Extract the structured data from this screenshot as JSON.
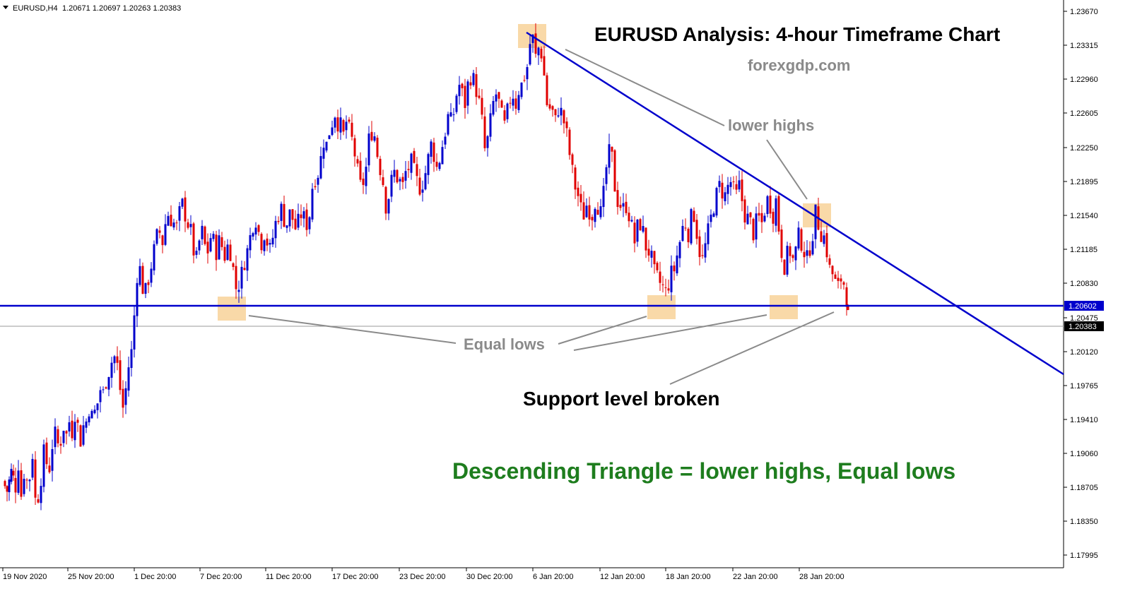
{
  "header": {
    "symbol_label": "EURUSD,H4",
    "ohlc": "1.20671 1.20697 1.20263 1.20383"
  },
  "annotations": {
    "title": "EURUSD Analysis: 4-hour Timeframe Chart",
    "source": "forexgdp.com",
    "lower_highs": "lower highs",
    "equal_lows": "Equal lows",
    "support_broken": "Support level broken",
    "conclusion": "Descending Triangle = lower highs, Equal lows"
  },
  "colors": {
    "bull": "#0000cc",
    "bear": "#e00000",
    "trendline": "#0000cc",
    "highlight": "#f9d9a8",
    "annotation_gray": "#8a8a8a",
    "conclusion_green": "#1e7d1e",
    "axis": "#000000"
  },
  "chart_data": {
    "type": "candlestick",
    "symbol": "EURUSD",
    "timeframe": "H4",
    "ylim": [
      1.178,
      1.237
    ],
    "y_ticks": [
      "1.23670",
      "1.23315",
      "1.22960",
      "1.22605",
      "1.22250",
      "1.21895",
      "1.21540",
      "1.21185",
      "1.20830",
      "1.20475",
      "1.20120",
      "1.19765",
      "1.19410",
      "1.19060",
      "1.18705",
      "1.18350",
      "1.17995"
    ],
    "x_ticks": [
      "19 Nov 2020",
      "25 Nov 20:00",
      "1 Dec 20:00",
      "7 Dec 20:00",
      "11 Dec 20:00",
      "17 Dec 20:00",
      "23 Dec 20:00",
      "30 Dec 20:00",
      "6 Jan 20:00",
      "12 Jan 20:00",
      "18 Jan 20:00",
      "22 Jan 20:00",
      "28 Jan 20:00"
    ],
    "support_level": "1.20602",
    "current_price": "1.20383",
    "closing_prices_by_date": [
      {
        "date": "19 Nov 2020",
        "close": 1.186
      },
      {
        "date": "25 Nov 20:00",
        "close": 1.192
      },
      {
        "date": "1 Dec 20:00",
        "close": 1.2085
      },
      {
        "date": "7 Dec 20:00",
        "close": 1.208
      },
      {
        "date": "11 Dec 20:00",
        "close": 1.213
      },
      {
        "date": "17 Dec 20:00",
        "close": 1.225
      },
      {
        "date": "23 Dec 20:00",
        "close": 1.219
      },
      {
        "date": "30 Dec 20:00",
        "close": 1.229
      },
      {
        "date": "6 Jan 20:00",
        "close": 1.229
      },
      {
        "date": "12 Jan 20:00",
        "close": 1.214
      },
      {
        "date": "18 Jan 20:00",
        "close": 1.208
      },
      {
        "date": "22 Jan 20:00",
        "close": 1.216
      },
      {
        "date": "28 Jan 20:00",
        "close": 1.212
      }
    ],
    "highs_marked": [
      {
        "label": "peak",
        "price": 1.2345
      },
      {
        "label": "lower high",
        "price": 1.2155
      }
    ],
    "lows_marked": [
      {
        "label": "equal low",
        "price": 1.206
      },
      {
        "label": "equal low",
        "price": 1.206
      },
      {
        "label": "equal low",
        "price": 1.2062
      }
    ],
    "candle_path": [
      [
        0,
        1.186
      ],
      [
        6,
        1.185
      ],
      [
        12,
        1.187
      ],
      [
        18,
        1.1855
      ],
      [
        22,
        1.188
      ],
      [
        26,
        1.1845
      ],
      [
        30,
        1.187
      ],
      [
        34,
        1.186
      ],
      [
        38,
        1.1865
      ],
      [
        42,
        1.189
      ],
      [
        46,
        1.184
      ],
      [
        50,
        1.1845
      ],
      [
        54,
        1.1865
      ],
      [
        58,
        1.189
      ],
      [
        62,
        1.188
      ],
      [
        66,
        1.1875
      ],
      [
        70,
        1.19
      ],
      [
        74,
        1.191
      ],
      [
        78,
        1.19
      ],
      [
        82,
        1.1905
      ],
      [
        86,
        1.192
      ],
      [
        90,
        1.191
      ],
      [
        94,
        1.1925
      ],
      [
        98,
        1.1915
      ],
      [
        102,
        1.1935
      ],
      [
        106,
        1.192
      ],
      [
        110,
        1.1905
      ],
      [
        114,
        1.192
      ],
      [
        118,
        1.1925
      ],
      [
        122,
        1.194
      ],
      [
        126,
        1.193
      ],
      [
        130,
        1.1935
      ],
      [
        134,
        1.1945
      ],
      [
        138,
        1.196
      ],
      [
        142,
        1.1955
      ],
      [
        146,
        1.197
      ],
      [
        150,
        1.198
      ],
      [
        154,
        1.199
      ],
      [
        158,
        1.1995
      ],
      [
        162,
        1.1985
      ],
      [
        166,
        1.196
      ],
      [
        170,
        1.194
      ],
      [
        174,
        1.196
      ],
      [
        178,
        1.1985
      ],
      [
        182,
        1.2
      ],
      [
        186,
        1.204
      ],
      [
        190,
        1.2085
      ],
      [
        194,
        1.209
      ],
      [
        198,
        1.207
      ],
      [
        202,
        1.2065
      ],
      [
        206,
        1.208
      ],
      [
        210,
        1.2095
      ],
      [
        214,
        1.211
      ],
      [
        218,
        1.2125
      ],
      [
        222,
        1.213
      ],
      [
        226,
        1.212
      ],
      [
        230,
        1.214
      ],
      [
        234,
        1.215
      ],
      [
        238,
        1.2145
      ],
      [
        242,
        1.214
      ],
      [
        246,
        1.2135
      ],
      [
        250,
        1.215
      ],
      [
        254,
        1.216
      ],
      [
        258,
        1.215
      ],
      [
        262,
        1.214
      ],
      [
        266,
        1.213
      ],
      [
        270,
        1.211
      ],
      [
        274,
        1.21
      ],
      [
        278,
        1.212
      ],
      [
        282,
        1.213
      ],
      [
        286,
        1.2115
      ],
      [
        290,
        1.211
      ],
      [
        294,
        1.2125
      ],
      [
        298,
        1.212
      ],
      [
        302,
        1.211
      ],
      [
        306,
        1.212
      ],
      [
        310,
        1.2115
      ],
      [
        314,
        1.2105
      ],
      [
        318,
        1.2115
      ],
      [
        322,
        1.211
      ],
      [
        326,
        1.209
      ],
      [
        330,
        1.207
      ],
      [
        334,
        1.2075
      ],
      [
        338,
        1.2085
      ],
      [
        342,
        1.21
      ],
      [
        346,
        1.211
      ],
      [
        350,
        1.2125
      ],
      [
        354,
        1.214
      ],
      [
        358,
        1.2145
      ],
      [
        362,
        1.213
      ],
      [
        366,
        1.212
      ],
      [
        370,
        1.213
      ],
      [
        374,
        1.212
      ],
      [
        378,
        1.211
      ],
      [
        382,
        1.2125
      ],
      [
        386,
        1.214
      ],
      [
        390,
        1.215
      ],
      [
        394,
        1.2155
      ],
      [
        398,
        1.2145
      ],
      [
        402,
        1.214
      ],
      [
        406,
        1.215
      ],
      [
        410,
        1.2145
      ],
      [
        414,
        1.2135
      ],
      [
        418,
        1.214
      ],
      [
        422,
        1.215
      ],
      [
        426,
        1.2145
      ],
      [
        430,
        1.214
      ],
      [
        434,
        1.215
      ],
      [
        438,
        1.218
      ],
      [
        442,
        1.219
      ],
      [
        446,
        1.2195
      ],
      [
        450,
        1.221
      ],
      [
        454,
        1.223
      ],
      [
        458,
        1.2225
      ],
      [
        462,
        1.224
      ],
      [
        466,
        1.225
      ],
      [
        470,
        1.226
      ],
      [
        474,
        1.225
      ],
      [
        478,
        1.2245
      ],
      [
        482,
        1.2235
      ],
      [
        486,
        1.225
      ],
      [
        490,
        1.224
      ],
      [
        494,
        1.223
      ],
      [
        498,
        1.2215
      ],
      [
        502,
        1.2195
      ],
      [
        506,
        1.218
      ],
      [
        510,
        1.2185
      ],
      [
        514,
        1.22
      ],
      [
        518,
        1.223
      ],
      [
        522,
        1.224
      ],
      [
        526,
        1.2235
      ],
      [
        530,
        1.2215
      ],
      [
        534,
        1.22
      ],
      [
        538,
        1.2185
      ],
      [
        542,
        1.216
      ],
      [
        546,
        1.217
      ],
      [
        550,
        1.2185
      ],
      [
        554,
        1.2195
      ],
      [
        558,
        1.219
      ],
      [
        562,
        1.2185
      ],
      [
        566,
        1.218
      ],
      [
        570,
        1.2195
      ],
      [
        574,
        1.22
      ],
      [
        578,
        1.2205
      ],
      [
        582,
        1.2195
      ],
      [
        586,
        1.2185
      ],
      [
        590,
        1.218
      ],
      [
        594,
        1.2185
      ],
      [
        598,
        1.2195
      ],
      [
        602,
        1.221
      ],
      [
        606,
        1.2225
      ],
      [
        610,
        1.2215
      ],
      [
        614,
        1.22
      ],
      [
        618,
        1.221
      ],
      [
        622,
        1.2225
      ],
      [
        626,
        1.224
      ],
      [
        630,
        1.2255
      ],
      [
        634,
        1.225
      ],
      [
        638,
        1.226
      ],
      [
        642,
        1.228
      ],
      [
        646,
        1.229
      ],
      [
        650,
        1.228
      ],
      [
        654,
        1.227
      ],
      [
        658,
        1.229
      ],
      [
        662,
        1.23
      ],
      [
        666,
        1.2295
      ],
      [
        670,
        1.2285
      ],
      [
        674,
        1.227
      ],
      [
        678,
        1.225
      ],
      [
        682,
        1.222
      ],
      [
        686,
        1.223
      ],
      [
        690,
        1.225
      ],
      [
        694,
        1.227
      ],
      [
        698,
        1.228
      ],
      [
        702,
        1.227
      ],
      [
        706,
        1.2255
      ],
      [
        710,
        1.2245
      ],
      [
        714,
        1.226
      ],
      [
        718,
        1.2275
      ],
      [
        722,
        1.228
      ],
      [
        726,
        1.227
      ],
      [
        730,
        1.2285
      ],
      [
        734,
        1.229
      ],
      [
        738,
        1.23
      ],
      [
        742,
        1.231
      ],
      [
        746,
        1.2335
      ],
      [
        750,
        1.234
      ],
      [
        754,
        1.232
      ],
      [
        758,
        1.233
      ],
      [
        762,
        1.2325
      ],
      [
        766,
        1.23
      ],
      [
        770,
        1.227
      ],
      [
        774,
        1.2265
      ],
      [
        778,
        1.226
      ],
      [
        782,
        1.225
      ],
      [
        786,
        1.2265
      ],
      [
        790,
        1.226
      ],
      [
        794,
        1.225
      ],
      [
        798,
        1.2235
      ],
      [
        802,
        1.2215
      ],
      [
        806,
        1.2195
      ],
      [
        810,
        1.218
      ],
      [
        814,
        1.217
      ],
      [
        818,
        1.2155
      ],
      [
        822,
        1.215
      ],
      [
        826,
        1.216
      ],
      [
        830,
        1.2155
      ],
      [
        834,
        1.215
      ],
      [
        838,
        1.2165
      ],
      [
        842,
        1.216
      ],
      [
        846,
        1.215
      ],
      [
        850,
        1.217
      ],
      [
        854,
        1.22
      ],
      [
        858,
        1.2215
      ],
      [
        862,
        1.221
      ],
      [
        866,
        1.218
      ],
      [
        870,
        1.2165
      ],
      [
        874,
        1.216
      ],
      [
        878,
        1.2155
      ],
      [
        882,
        1.216
      ],
      [
        886,
        1.215
      ],
      [
        890,
        1.2135
      ],
      [
        894,
        1.212
      ],
      [
        898,
        1.2135
      ],
      [
        902,
        1.214
      ],
      [
        906,
        1.213
      ],
      [
        910,
        1.2115
      ],
      [
        914,
        1.211
      ],
      [
        918,
        1.21
      ],
      [
        922,
        1.2085
      ],
      [
        926,
        1.208
      ],
      [
        930,
        1.2075
      ],
      [
        934,
        1.207
      ],
      [
        938,
        1.2065
      ],
      [
        942,
        1.2075
      ],
      [
        946,
        1.2085
      ],
      [
        950,
        1.209
      ],
      [
        954,
        1.2105
      ],
      [
        958,
        1.212
      ],
      [
        962,
        1.2135
      ],
      [
        966,
        1.214
      ],
      [
        970,
        1.213
      ],
      [
        974,
        1.2145
      ],
      [
        978,
        1.215
      ],
      [
        982,
        1.213
      ],
      [
        986,
        1.211
      ],
      [
        990,
        1.21
      ],
      [
        994,
        1.2115
      ],
      [
        998,
        1.213
      ],
      [
        1002,
        1.2145
      ],
      [
        1006,
        1.216
      ],
      [
        1010,
        1.217
      ],
      [
        1014,
        1.218
      ],
      [
        1018,
        1.2175
      ],
      [
        1022,
        1.217
      ],
      [
        1026,
        1.218
      ],
      [
        1030,
        1.2185
      ],
      [
        1034,
        1.2175
      ],
      [
        1038,
        1.217
      ],
      [
        1042,
        1.218
      ],
      [
        1046,
        1.2165
      ],
      [
        1050,
        1.215
      ],
      [
        1054,
        1.2145
      ],
      [
        1058,
        1.214
      ],
      [
        1062,
        1.213
      ],
      [
        1066,
        1.214
      ],
      [
        1070,
        1.2145
      ],
      [
        1074,
        1.214
      ],
      [
        1078,
        1.2155
      ],
      [
        1082,
        1.2165
      ],
      [
        1086,
        1.216
      ],
      [
        1090,
        1.215
      ],
      [
        1094,
        1.2165
      ],
      [
        1098,
        1.2135
      ],
      [
        1102,
        1.211
      ],
      [
        1106,
        1.2095
      ],
      [
        1110,
        1.2105
      ],
      [
        1114,
        1.211
      ],
      [
        1118,
        1.21
      ],
      [
        1122,
        1.211
      ],
      [
        1126,
        1.2125
      ],
      [
        1130,
        1.212
      ],
      [
        1134,
        1.211
      ],
      [
        1138,
        1.21
      ],
      [
        1142,
        1.2115
      ],
      [
        1146,
        1.213
      ],
      [
        1150,
        1.215
      ],
      [
        1154,
        1.214
      ],
      [
        1158,
        1.213
      ],
      [
        1162,
        1.2125
      ],
      [
        1166,
        1.211
      ],
      [
        1170,
        1.209
      ],
      [
        1174,
        1.2085
      ],
      [
        1178,
        1.2075
      ],
      [
        1182,
        1.207
      ],
      [
        1186,
        1.208
      ],
      [
        1190,
        1.2075
      ],
      [
        1194,
        1.206
      ],
      [
        1196,
        1.2038
      ]
    ]
  }
}
